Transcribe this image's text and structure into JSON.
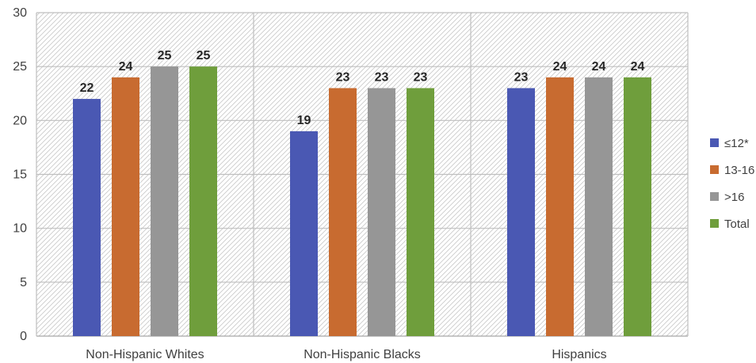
{
  "chart_data": {
    "type": "bar",
    "categories": [
      "Non-Hispanic Whites",
      "Non-Hispanic Blacks",
      "Hispanics"
    ],
    "series": [
      {
        "name": "≤12*",
        "values": [
          22,
          19,
          23
        ],
        "color": "#4a58b3"
      },
      {
        "name": "13-16",
        "values": [
          24,
          23,
          24
        ],
        "color": "#c86b30"
      },
      {
        "name": ">16",
        "values": [
          25,
          23,
          24
        ],
        "color": "#969696"
      },
      {
        "name": "Total",
        "values": [
          25,
          23,
          24
        ],
        "color": "#6f9e3c"
      }
    ],
    "title": "",
    "xlabel": "",
    "ylabel": "",
    "ylim": [
      0,
      30
    ],
    "yticks": [
      0,
      5,
      10,
      15,
      20,
      25,
      30
    ],
    "grid": true,
    "legend_position": "right",
    "data_labels": true,
    "plot_background": "hatched"
  }
}
